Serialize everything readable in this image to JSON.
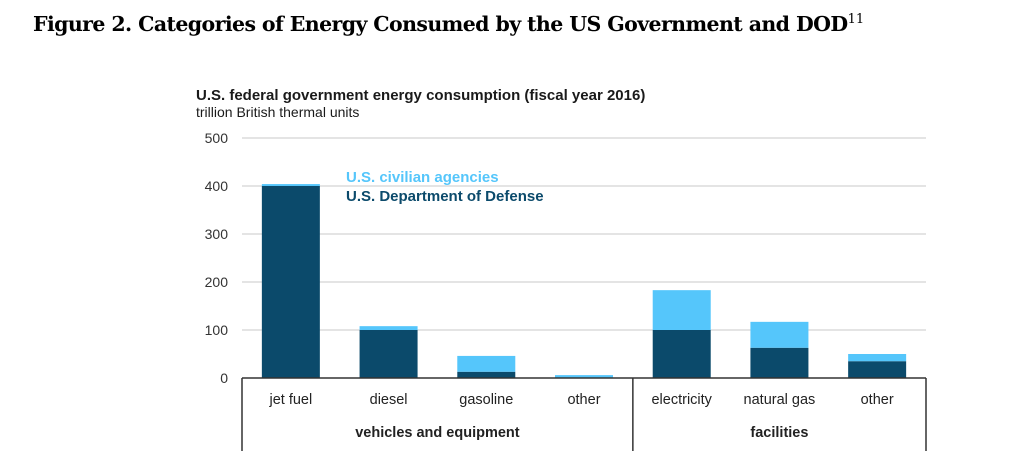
{
  "figure": {
    "caption": "Figure 2. Categories of Energy Consumed by the US Government and DOD",
    "footnote_ref": "11"
  },
  "chart_data": {
    "type": "bar",
    "stacked": true,
    "title": "U.S. federal government energy consumption (fiscal year 2016)",
    "subtitle": "trillion British thermal units",
    "xlabel": "",
    "ylabel": "trillion British thermal units",
    "ylim": [
      0,
      500
    ],
    "yticks": [
      0,
      100,
      200,
      300,
      400,
      500
    ],
    "grid": true,
    "categories": [
      "jet fuel",
      "diesel",
      "gasoline",
      "other",
      "electricity",
      "natural gas",
      "other"
    ],
    "groups": [
      {
        "label": "vehicles and equipment",
        "categories": [
          0,
          1,
          2,
          3
        ]
      },
      {
        "label": "facilities",
        "categories": [
          4,
          5,
          6
        ]
      }
    ],
    "series": [
      {
        "name": "U.S. Department of Defense",
        "color": "#0b4a6b",
        "values": [
          400,
          100,
          13,
          0,
          100,
          63,
          35
        ]
      },
      {
        "name": "U.S. civilian agencies",
        "color": "#55c6fb",
        "values": [
          4,
          8,
          33,
          6,
          83,
          54,
          15
        ]
      }
    ],
    "legend": {
      "placement": "top-center",
      "entries": [
        {
          "label": "U.S. civilian agencies",
          "color": "#55c6fb"
        },
        {
          "label": "U.S. Department of Defense",
          "color": "#0b4a6b"
        }
      ]
    }
  }
}
